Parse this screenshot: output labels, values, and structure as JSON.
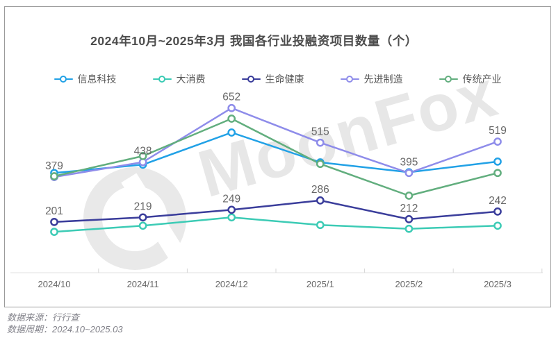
{
  "chart_data": {
    "type": "line",
    "title": "2024年10月~2025年3月 我国各行业投融资项目数量（个）",
    "categories": [
      "2024/10",
      "2024/11",
      "2024/12",
      "2025/1",
      "2025/2",
      "2025/3"
    ],
    "series": [
      {
        "key": "info-tech",
        "name": "信息科技",
        "color": "#21A1E6",
        "values": [
          395,
          428,
          555,
          437,
          398,
          440
        ],
        "labels_visible": false
      },
      {
        "key": "consumer",
        "name": "大消费",
        "color": "#3CCBB5",
        "values": [
          162,
          186,
          219,
          189,
          174,
          186
        ],
        "labels_visible": false
      },
      {
        "key": "life-health",
        "name": "生命健康",
        "color": "#3A3D9B",
        "values": [
          201,
          219,
          249,
          286,
          212,
          242
        ],
        "labels_visible": true
      },
      {
        "key": "adv-manufacturing",
        "name": "先进制造",
        "color": "#8E8CEA",
        "values": [
          379,
          438,
          652,
          515,
          395,
          519
        ],
        "labels_visible": true
      },
      {
        "key": "traditional-industry",
        "name": "传统产业",
        "color": "#62AE7E",
        "values": [
          382,
          462,
          610,
          431,
          305,
          395
        ],
        "labels_visible": false
      }
    ],
    "labels_shown_for": [
      "生命健康",
      "先进制造"
    ],
    "ylim": [
      0,
      720
    ],
    "grid": false,
    "legend_position": "top",
    "label_color": "#666666",
    "axis_label_color": "#666666",
    "axis_line_color": "#e0e0e0",
    "tick_color": "#d5d5d5"
  },
  "watermark": {
    "text": "MoonFox"
  },
  "footer": {
    "source": "数据来源：行行查",
    "period": "数据周期：2024.10~2025.03"
  }
}
